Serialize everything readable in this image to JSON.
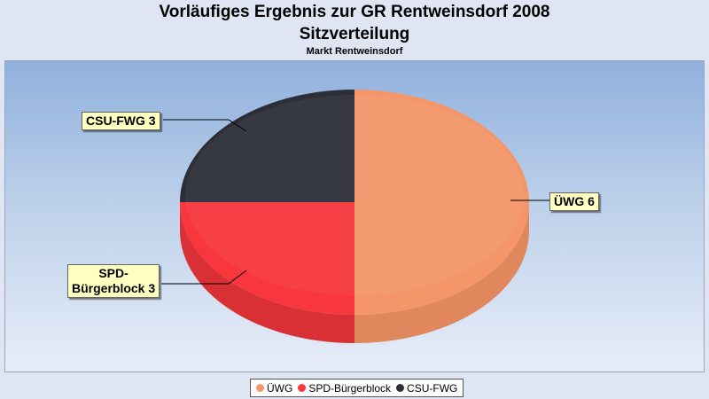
{
  "chart_data": {
    "type": "pie",
    "title": "Vorläufiges Ergebnis zur GR Rentweinsdorf 2008",
    "subtitle": "Sitzverteilung",
    "subsubtitle": "Markt Rentweinsdorf",
    "slices": [
      {
        "name": "ÜWG",
        "value": 6,
        "label": "ÜWG 6",
        "color": "#f4956a",
        "side_color": "#e0875d"
      },
      {
        "name": "SPD-Bürgerblock",
        "value": 3,
        "label": "SPD-Bürgerblock 3",
        "label_line1": "SPD-",
        "label_line2": "Bürgerblock 3",
        "color": "#f7363d",
        "side_color": "#d93035"
      },
      {
        "name": "CSU-FWG",
        "value": 3,
        "label": "CSU-FWG 3",
        "color": "#2c2f37",
        "side_color": "#1f2127"
      }
    ],
    "legend": [
      "ÜWG",
      "SPD-Bürgerblock",
      "CSU-FWG"
    ],
    "legend_position": "bottom"
  }
}
